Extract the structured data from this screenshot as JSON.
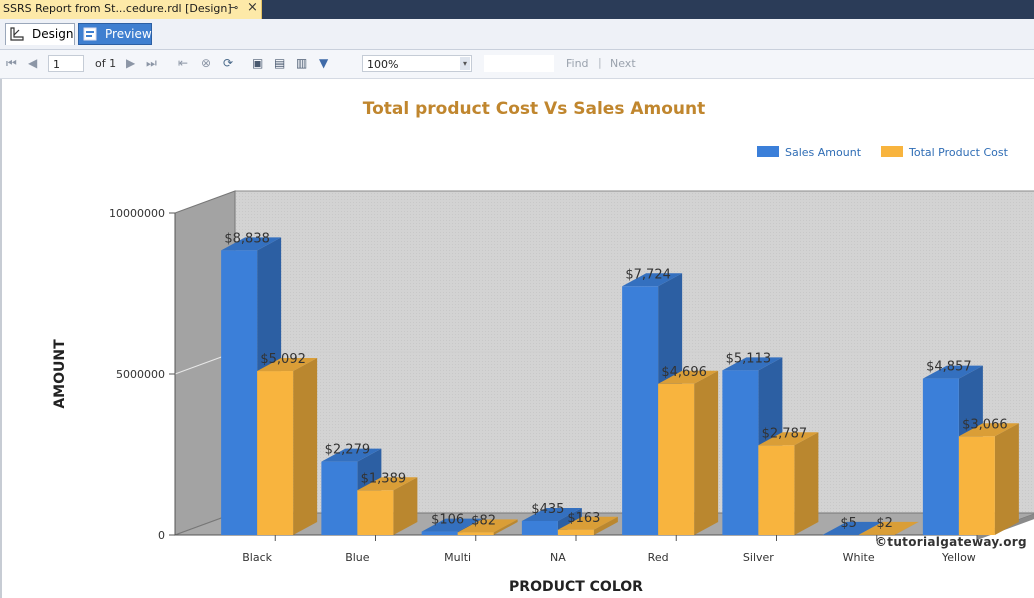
{
  "window": {
    "doc_tab_title": "SSRS Report from St...cedure.rdl [Design]",
    "pin_glyph": "⊸",
    "close_glyph": "×"
  },
  "view_tabs": [
    {
      "label": "Design",
      "icon": "design-icon",
      "active": true
    },
    {
      "label": "Preview",
      "icon": "preview-icon",
      "active": false
    }
  ],
  "toolbar": {
    "page_value": "1",
    "page_of": "of",
    "page_total": "1",
    "zoom_value": "100%",
    "find_label": "Find",
    "separator": "|",
    "next_label": "Next",
    "icons": [
      "first-page-icon",
      "previous-page-icon",
      "next-page-icon",
      "last-page-icon",
      "back-icon",
      "stop-icon",
      "refresh-icon",
      "print-icon",
      "print-layout-icon",
      "page-setup-icon",
      "export-icon"
    ]
  },
  "watermark": "©tutorialgateway.org",
  "colors": {
    "accent_title": "#c0862e",
    "sales": "#3b7fd9",
    "cost": "#f8b43e"
  },
  "chart_data": {
    "type": "bar",
    "title": "Total product Cost Vs Sales Amount",
    "xlabel": "PRODUCT COLOR",
    "ylabel": "AMOUNT",
    "categories": [
      "Black",
      "Blue",
      "Multi",
      "NA",
      "Red",
      "Silver",
      "White",
      "Yellow"
    ],
    "y_ticks": [
      "0",
      "5000000",
      "10000000"
    ],
    "ylim": [
      0,
      10000000
    ],
    "legend_position": "top-right",
    "three_d": true,
    "series": [
      {
        "name": "Sales Amount",
        "color": "#3b7fd9",
        "values": [
          8838000,
          2279000,
          106000,
          435000,
          7724000,
          5113000,
          5000,
          4857000
        ],
        "labels": [
          "$8,838",
          "$2,279",
          "$106",
          "$435",
          "$7,724",
          "$5,113",
          "$5",
          "$4,857"
        ]
      },
      {
        "name": "Total Product Cost",
        "color": "#f8b43e",
        "values": [
          5092000,
          1389000,
          82000,
          163000,
          4696000,
          2787000,
          2000,
          3066000
        ],
        "labels": [
          "$5,092",
          "$1,389",
          "$82",
          "$163",
          "$4,696",
          "$2,787",
          "$2",
          "$3,066"
        ]
      }
    ]
  }
}
